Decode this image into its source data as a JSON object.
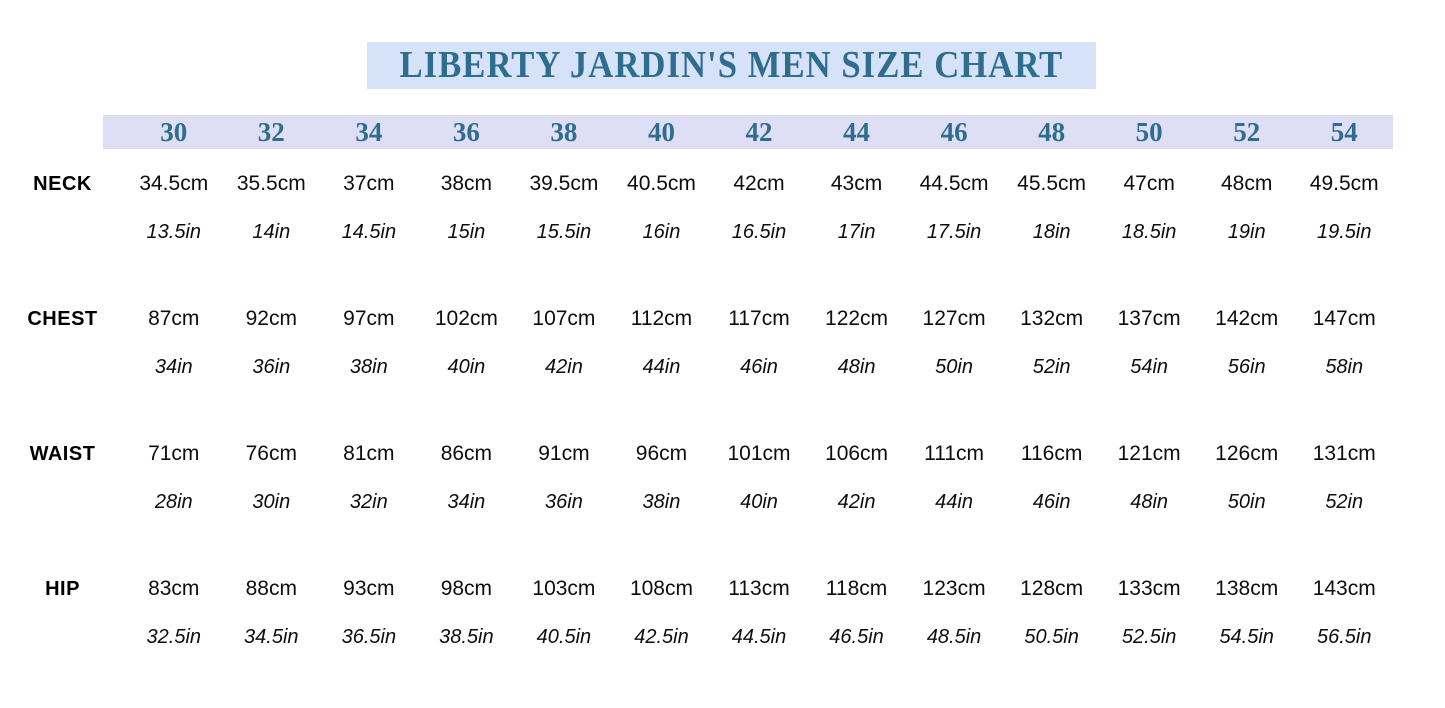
{
  "title": "LIBERTY JARDIN'S MEN SIZE CHART",
  "colors": {
    "title_bg": "#d6e2f8",
    "header_bg": "#dedef5",
    "accent": "#2e6d8e",
    "text": "#0d0d0d"
  },
  "chart_data": {
    "type": "table",
    "title": "LIBERTY JARDIN'S MEN SIZE CHART",
    "columns": [
      "30",
      "32",
      "34",
      "36",
      "38",
      "40",
      "42",
      "44",
      "46",
      "48",
      "50",
      "52",
      "54"
    ],
    "rows": [
      {
        "label": "NECK",
        "cm": [
          "34.5cm",
          "35.5cm",
          "37cm",
          "38cm",
          "39.5cm",
          "40.5cm",
          "42cm",
          "43cm",
          "44.5cm",
          "45.5cm",
          "47cm",
          "48cm",
          "49.5cm"
        ],
        "inch": [
          "13.5in",
          "14in",
          "14.5in",
          "15in",
          "15.5in",
          "16in",
          "16.5in",
          "17in",
          "17.5in",
          "18in",
          "18.5in",
          "19in",
          "19.5in"
        ]
      },
      {
        "label": "CHEST",
        "cm": [
          "87cm",
          "92cm",
          "97cm",
          "102cm",
          "107cm",
          "112cm",
          "117cm",
          "122cm",
          "127cm",
          "132cm",
          "137cm",
          "142cm",
          "147cm"
        ],
        "inch": [
          "34in",
          "36in",
          "38in",
          "40in",
          "42in",
          "44in",
          "46in",
          "48in",
          "50in",
          "52in",
          "54in",
          "56in",
          "58in"
        ]
      },
      {
        "label": "WAIST",
        "cm": [
          "71cm",
          "76cm",
          "81cm",
          "86cm",
          "91cm",
          "96cm",
          "101cm",
          "106cm",
          "111cm",
          "116cm",
          "121cm",
          "126cm",
          "131cm"
        ],
        "inch": [
          "28in",
          "30in",
          "32in",
          "34in",
          "36in",
          "38in",
          "40in",
          "42in",
          "44in",
          "46in",
          "48in",
          "50in",
          "52in"
        ]
      },
      {
        "label": "HIP",
        "cm": [
          "83cm",
          "88cm",
          "93cm",
          "98cm",
          "103cm",
          "108cm",
          "113cm",
          "118cm",
          "123cm",
          "128cm",
          "133cm",
          "138cm",
          "143cm"
        ],
        "inch": [
          "32.5in",
          "34.5in",
          "36.5in",
          "38.5in",
          "40.5in",
          "42.5in",
          "44.5in",
          "46.5in",
          "48.5in",
          "50.5in",
          "52.5in",
          "54.5in",
          "56.5in"
        ]
      }
    ]
  }
}
